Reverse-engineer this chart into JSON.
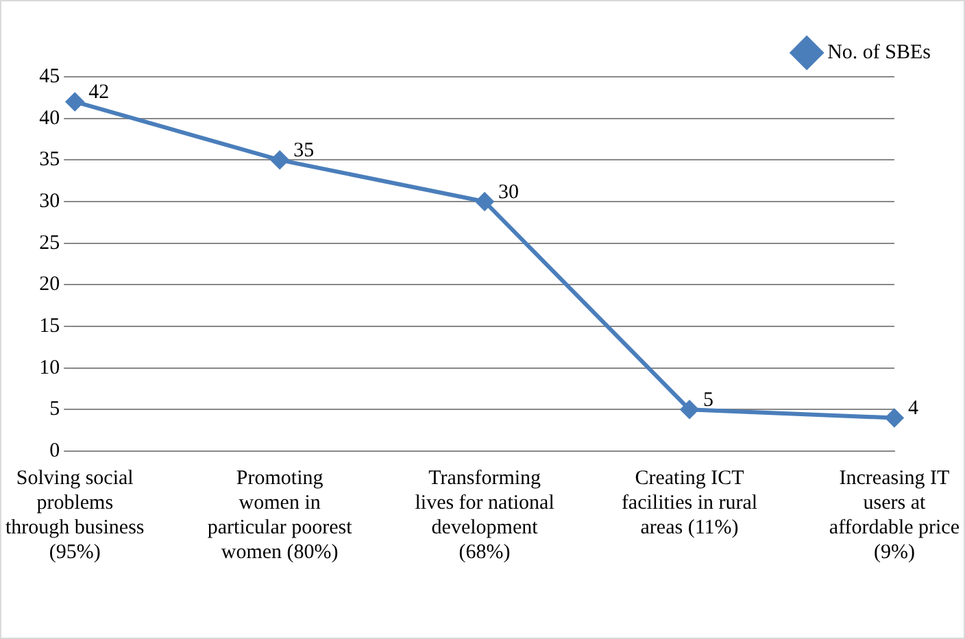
{
  "chart_data": {
    "type": "line",
    "categories": [
      "Solving social problems through business (95%)",
      "Promoting women in particular poorest women (80%)",
      "Transforming lives for national development (68%)",
      "Creating ICT facilities in rural areas (11%)",
      "Increasing IT users at affordable price (9%)"
    ],
    "series": [
      {
        "name": "No. of SBEs",
        "color": "#4a7ebb",
        "values": [
          42,
          35,
          30,
          5,
          4
        ]
      }
    ],
    "ylim": [
      0,
      45
    ],
    "yticks": [
      0,
      5,
      10,
      15,
      20,
      25,
      30,
      35,
      40,
      45
    ],
    "grid": "y",
    "legend": "top right",
    "marker": "diamond",
    "line_style": "solid",
    "data_labels": true
  }
}
